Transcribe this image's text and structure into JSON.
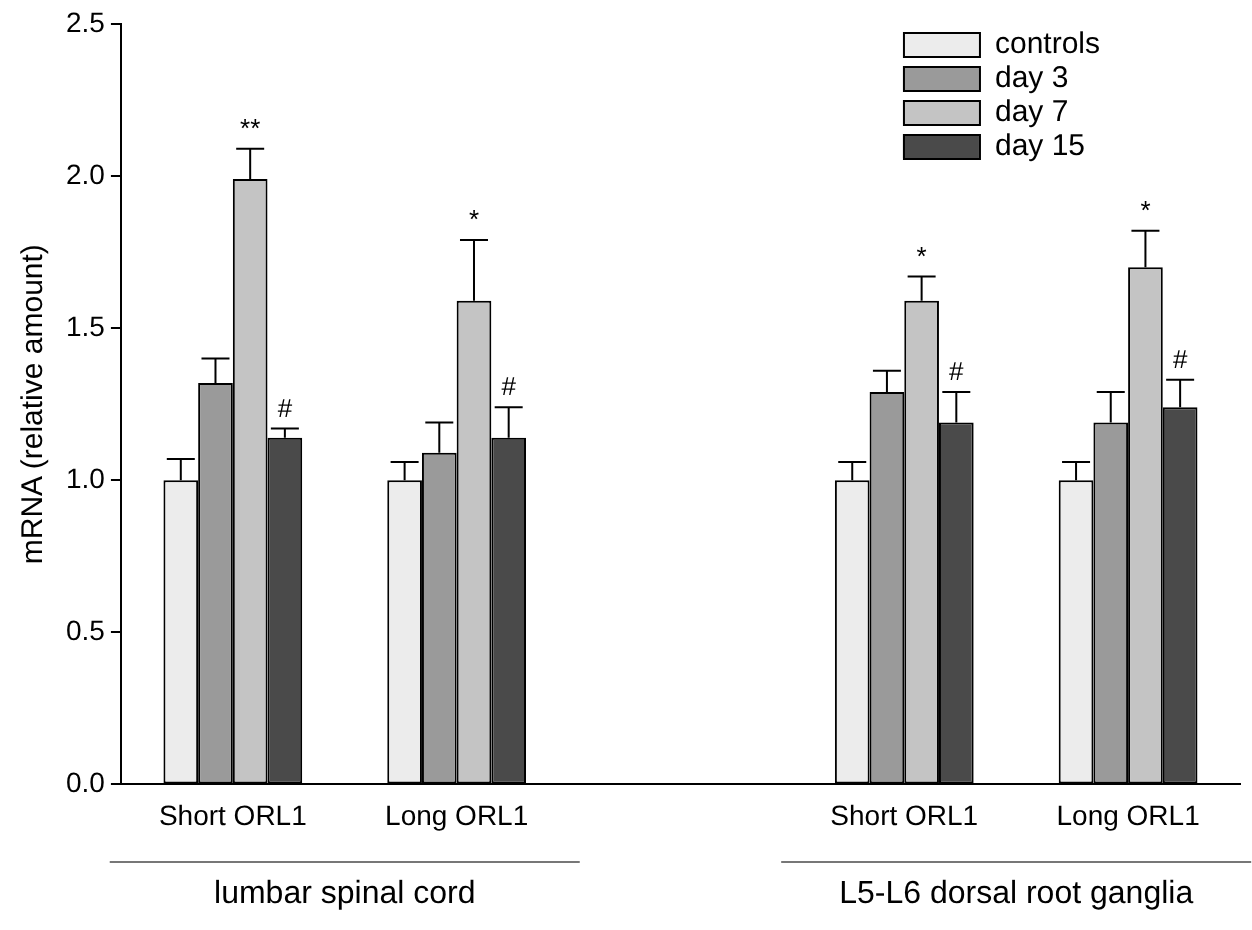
{
  "chart_data": {
    "type": "bar",
    "ylabel": "mRNA (relative amount)",
    "categories": [
      "Short ORL1",
      "Long ORL1",
      null,
      "Short ORL1",
      "Long ORL1"
    ],
    "series": [
      {
        "name": "controls",
        "color": "#ececec",
        "values": [
          1.0,
          1.0,
          null,
          1.0,
          1.0
        ],
        "errors": [
          [
            1.0,
            1.07
          ],
          [
            1.0,
            1.06
          ],
          null,
          [
            1.0,
            1.06
          ],
          [
            1.0,
            1.06
          ]
        ]
      },
      {
        "name": "day 3",
        "color": "#9a9a9a",
        "values": [
          1.32,
          1.09,
          null,
          1.29,
          1.19
        ],
        "errors": [
          [
            1.32,
            1.4
          ],
          [
            1.09,
            1.19
          ],
          null,
          [
            1.29,
            1.36
          ],
          [
            1.19,
            1.29
          ]
        ]
      },
      {
        "name": "day 7",
        "color": "#c4c4c4",
        "values": [
          1.99,
          1.59,
          null,
          1.59,
          1.7
        ],
        "errors": [
          [
            1.99,
            2.09
          ],
          [
            1.59,
            1.79
          ],
          null,
          [
            1.59,
            1.67
          ],
          [
            1.7,
            1.82
          ]
        ],
        "value_labels": [
          "**",
          "*",
          null,
          "*",
          "*"
        ]
      },
      {
        "name": "day 15",
        "color": "#4a4a4a",
        "values": [
          1.14,
          1.14,
          null,
          1.19,
          1.24
        ],
        "errors": [
          [
            1.14,
            1.17
          ],
          [
            1.14,
            1.24
          ],
          null,
          [
            1.19,
            1.29
          ],
          [
            1.24,
            1.33
          ]
        ],
        "value_labels": [
          "#",
          "#",
          null,
          "#",
          "#"
        ]
      }
    ],
    "ylim": [
      0,
      2.5
    ],
    "yticks": [
      {
        "value": 0,
        "label": "0.0"
      },
      {
        "value": 0.5,
        "label": "0.5"
      },
      {
        "value": 1,
        "label": "1.0"
      },
      {
        "value": 1.5,
        "label": "1.5"
      },
      {
        "value": 2,
        "label": "2.0"
      },
      {
        "value": 2.5,
        "label": "2.5"
      }
    ],
    "grid": false,
    "legend": "top right",
    "annotations": [
      "lumbar spinal cord",
      "L5-L6 dorsal root ganglia"
    ]
  }
}
